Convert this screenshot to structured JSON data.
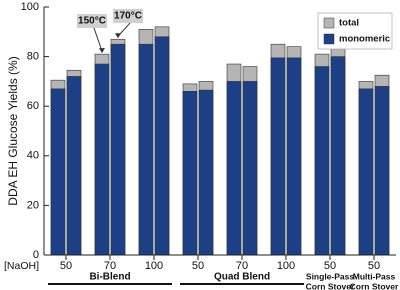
{
  "chart_data": {
    "type": "bar",
    "y_label": "DDA EH Glucose Yields (%)",
    "x_label": "[NaOH]",
    "categories": [
      "50",
      "70",
      "100",
      "50",
      "70",
      "100",
      "50",
      "50"
    ],
    "groups": [
      {
        "label": [
          "Bi-Blend"
        ],
        "size": 3,
        "underline": true
      },
      {
        "label": [
          "Quad Blend"
        ],
        "size": 3,
        "underline": true
      },
      {
        "label": [
          "Single-Pass",
          "Corn Stover"
        ],
        "size": 1,
        "underline": false
      },
      {
        "label": [
          "Multi-Pass",
          "Corn Stover"
        ],
        "size": 1,
        "underline": false
      }
    ],
    "series": [
      {
        "name": "total",
        "color": "#b5b5b5",
        "values": [
          [
            70.5,
            74.5
          ],
          [
            81,
            87
          ],
          [
            91,
            92
          ],
          [
            69,
            70
          ],
          [
            77,
            76
          ],
          [
            85,
            84
          ],
          [
            81,
            84
          ],
          [
            70,
            72.5
          ]
        ]
      },
      {
        "name": "monomeric",
        "color": "#1c3f86",
        "values": [
          [
            67,
            72
          ],
          [
            77,
            85
          ],
          [
            85,
            88
          ],
          [
            66,
            66.5
          ],
          [
            70,
            70
          ],
          [
            79.5,
            79.5
          ],
          [
            76,
            80
          ],
          [
            67,
            68
          ]
        ]
      }
    ],
    "annotations": [
      "150°C",
      "170°C"
    ],
    "ylim": [
      0,
      100
    ],
    "yticks": [
      0,
      20,
      40,
      60,
      80,
      100
    ],
    "legend": "upper right"
  }
}
